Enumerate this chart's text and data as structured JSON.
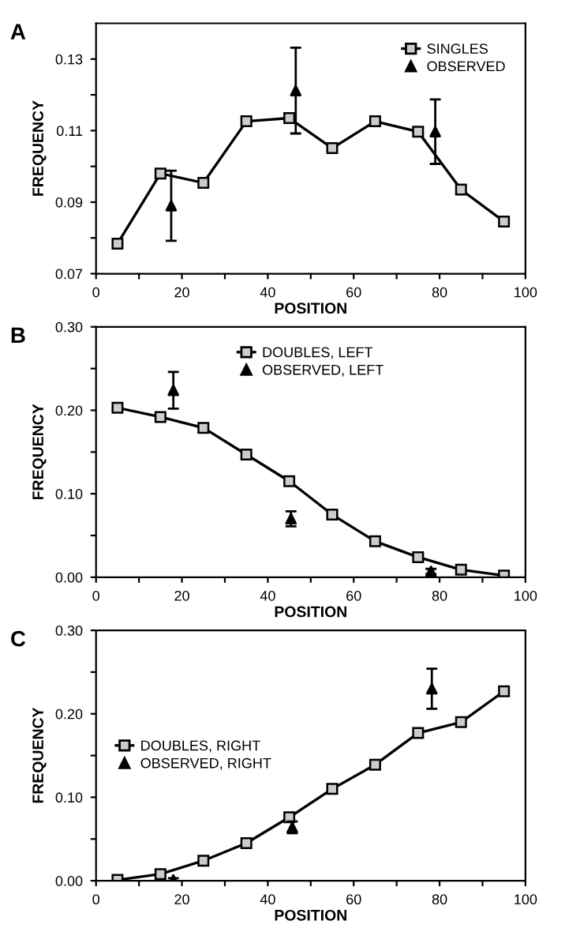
{
  "chart_data": [
    {
      "type": "line",
      "title": "A",
      "xlabel": "POSITION",
      "ylabel": "FREQUENCY",
      "legend": "top right",
      "grid": false,
      "xlim": [
        0,
        100
      ],
      "xticks": [
        0,
        {
          "value": 10,
          "label": null
        },
        20,
        {
          "value": 30,
          "label": null
        },
        40,
        {
          "value": 50,
          "label": null
        },
        60,
        {
          "value": 70,
          "label": null
        },
        80,
        {
          "value": 90,
          "label": null
        },
        100
      ],
      "ylim": [
        0.07,
        0.14
      ],
      "yticks": [
        0.07,
        {
          "value": 0.08,
          "label": null
        },
        0.09,
        {
          "value": 0.1,
          "label": null
        },
        0.11,
        {
          "value": 0.12,
          "label": null
        },
        0.13
      ],
      "series": [
        {
          "name": "SINGLES",
          "marker": "square",
          "color": "#000000",
          "x": [
            5,
            15,
            25,
            35,
            45,
            55,
            65,
            75,
            85,
            95
          ],
          "values": [
            0.0784,
            0.098,
            0.0954,
            0.1126,
            0.1135,
            0.1051,
            0.1126,
            0.1097,
            0.0935,
            0.0846
          ]
        },
        {
          "name": "OBSERVED",
          "type": "scatter",
          "marker": "triangle",
          "color": "#000000",
          "x": [
            17.5,
            46.5,
            79
          ],
          "values": [
            0.089,
            0.1212,
            0.1097
          ],
          "errors": [
            0.0098,
            0.012,
            0.009
          ]
        }
      ]
    },
    {
      "type": "line",
      "title": "B",
      "xlabel": "POSITION",
      "ylabel": "FREQUENCY",
      "legend": "top",
      "grid": false,
      "xlim": [
        0,
        100
      ],
      "xticks": [
        0,
        {
          "value": 10,
          "label": null
        },
        20,
        {
          "value": 30,
          "label": null
        },
        40,
        {
          "value": 50,
          "label": null
        },
        60,
        {
          "value": 70,
          "label": null
        },
        80,
        {
          "value": 90,
          "label": null
        },
        100
      ],
      "ylim": [
        0,
        0.3
      ],
      "yticks": [
        {
          "value": 0,
          "label": "0.00"
        },
        {
          "value": 0.05,
          "label": null
        },
        {
          "value": 0.1,
          "label": "0.10"
        },
        {
          "value": 0.15,
          "label": null
        },
        {
          "value": 0.2,
          "label": "0.20"
        },
        {
          "value": 0.25,
          "label": null
        },
        {
          "value": 0.3,
          "label": "0.30"
        }
      ],
      "series": [
        {
          "name": "DOUBLES, LEFT",
          "marker": "square",
          "color": "#000000",
          "x": [
            5,
            15,
            25,
            35,
            45,
            55,
            65,
            75,
            85,
            95
          ],
          "values": [
            0.203,
            0.192,
            0.179,
            0.147,
            0.115,
            0.075,
            0.043,
            0.024,
            0.009,
            0.002
          ]
        },
        {
          "name": "OBSERVED, LEFT",
          "type": "scatter",
          "marker": "triangle",
          "color": "#000000",
          "x": [
            18,
            45.4,
            78
          ],
          "values": [
            0.224,
            0.07,
            0.007
          ],
          "errors": [
            0.022,
            0.009,
            0.003
          ]
        }
      ]
    },
    {
      "type": "line",
      "title": "C",
      "xlabel": "POSITION",
      "ylabel": "FREQUENCY",
      "legend": "left",
      "grid": false,
      "xlim": [
        0,
        100
      ],
      "xticks": [
        0,
        {
          "value": 10,
          "label": null
        },
        20,
        {
          "value": 30,
          "label": null
        },
        40,
        {
          "value": 50,
          "label": null
        },
        60,
        {
          "value": 70,
          "label": null
        },
        80,
        {
          "value": 90,
          "label": null
        },
        100
      ],
      "ylim": [
        0,
        0.3
      ],
      "yticks": [
        {
          "value": 0,
          "label": "0.00"
        },
        {
          "value": 0.05,
          "label": null
        },
        {
          "value": 0.1,
          "label": "0.10"
        },
        {
          "value": 0.15,
          "label": null
        },
        {
          "value": 0.2,
          "label": "0.20"
        },
        {
          "value": 0.25,
          "label": null
        },
        {
          "value": 0.3,
          "label": "0.30"
        }
      ],
      "series": [
        {
          "name": "DOUBLES, RIGHT",
          "marker": "square",
          "color": "#000000",
          "x": [
            5,
            15,
            25,
            35,
            45,
            55,
            65,
            75,
            85,
            95
          ],
          "values": [
            0.001,
            0.008,
            0.024,
            0.045,
            0.076,
            0.11,
            0.139,
            0.177,
            0.19,
            0.227
          ]
        },
        {
          "name": "OBSERVED, RIGHT",
          "type": "scatter",
          "marker": "triangle",
          "color": "#000000",
          "x": [
            18,
            45.7,
            78.2
          ],
          "values": [
            0.001,
            0.064,
            0.23
          ],
          "errors": [
            0.002,
            0.007,
            0.024
          ]
        }
      ]
    }
  ]
}
